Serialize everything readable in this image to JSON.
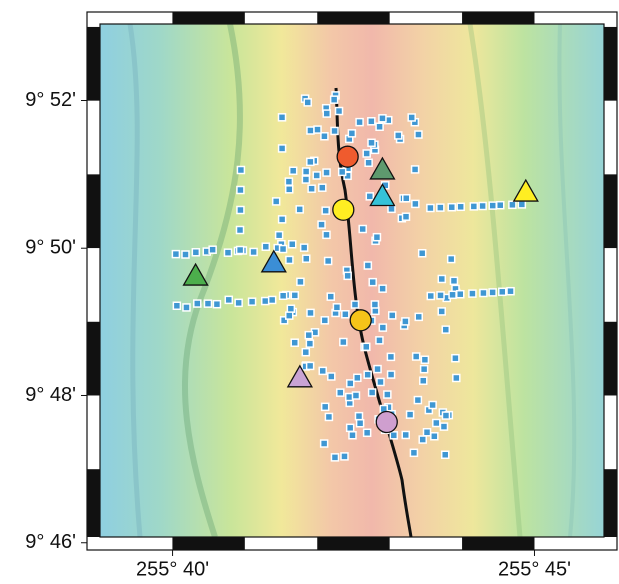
{
  "map": {
    "xlim": [
      255.65,
      255.766
    ],
    "ylim": [
      9.768,
      9.884
    ],
    "xticks": [
      {
        "value": 255.6667,
        "label": "255° 40'"
      },
      {
        "value": 255.75,
        "label": "255° 45'"
      }
    ],
    "yticks": [
      {
        "value": 9.7667,
        "label": "9° 46'"
      },
      {
        "value": 9.8,
        "label": "9° 48'"
      },
      {
        "value": 9.8333,
        "label": "9° 50'"
      },
      {
        "value": 9.8667,
        "label": "9° 52'"
      }
    ],
    "triangles": [
      {
        "color": "#4cae4c",
        "x": 255.672,
        "y": 9.827
      },
      {
        "color": "#3b8ed6",
        "x": 255.69,
        "y": 9.83
      },
      {
        "color": "#c9a3d4",
        "x": 255.696,
        "y": 9.804
      },
      {
        "color": "#5e9a6e",
        "x": 255.715,
        "y": 9.851
      },
      {
        "color": "#35c2d8",
        "x": 255.715,
        "y": 9.845
      },
      {
        "color": "#ffee22",
        "x": 255.748,
        "y": 9.846
      }
    ],
    "circles": [
      {
        "color": "#ef5b2e",
        "x": 255.707,
        "y": 9.854
      },
      {
        "color": "#ffee22",
        "x": 255.706,
        "y": 9.842
      },
      {
        "color": "#f5c419",
        "x": 255.71,
        "y": 9.817
      },
      {
        "color": "#cf9fcf",
        "x": 255.716,
        "y": 9.794
      }
    ]
  }
}
